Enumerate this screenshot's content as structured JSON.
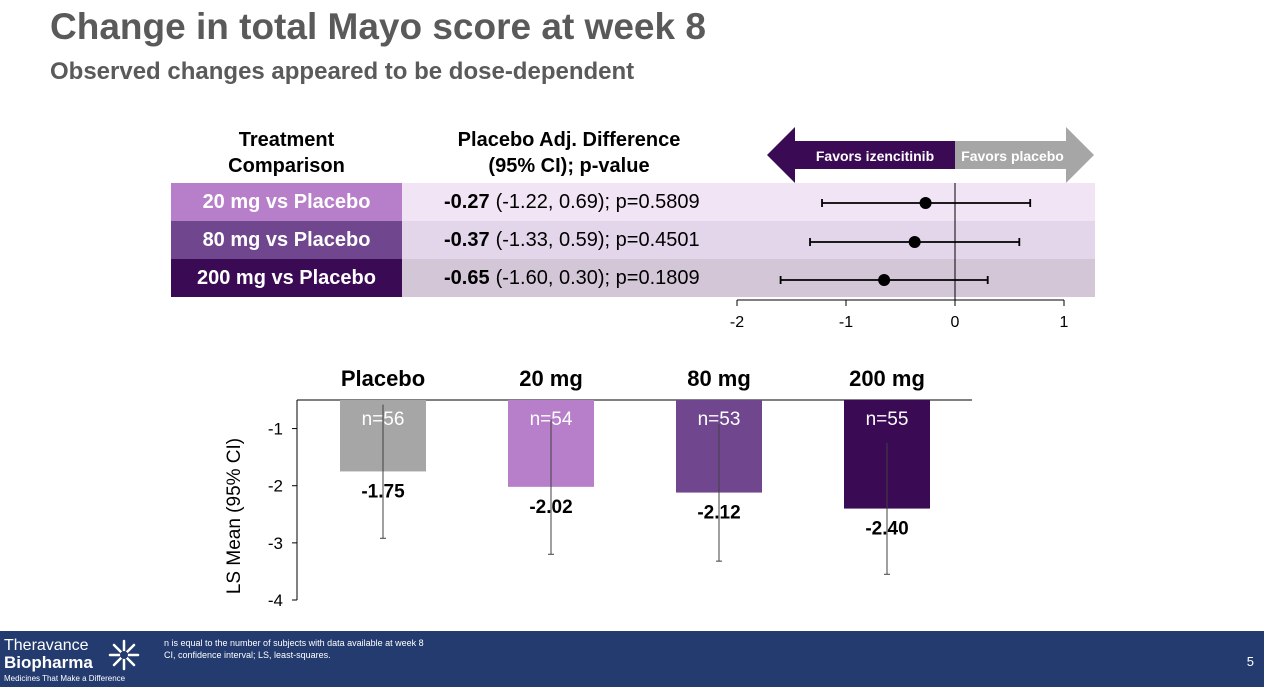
{
  "header": {
    "title": "Change in total Mayo score at week 8",
    "subtitle": "Observed changes appeared to be dose-dependent"
  },
  "forest": {
    "col_treatment_1": "Treatment",
    "col_treatment_2": "Comparison",
    "col_diff_1": "Placebo Adj. Difference",
    "col_diff_2": "(95% CI); p-value",
    "favors_left": "Favors izencitinib",
    "favors_right": "Favors placebo",
    "rows": [
      {
        "label": "20 mg vs Placebo",
        "estimate_text": "-0.27",
        "ci_text": "(-1.22, 0.69); p=0.5809",
        "estimate": -0.27,
        "lower": -1.22,
        "upper": 0.69,
        "label_color": "#b77fca",
        "band_color": "#f1e4f4"
      },
      {
        "label": "80 mg vs Placebo",
        "estimate_text": "-0.37",
        "ci_text": "(-1.33, 0.59); p=0.4501",
        "estimate": -0.37,
        "lower": -1.33,
        "upper": 0.59,
        "label_color": "#70478e",
        "band_color": "#e3d6ea"
      },
      {
        "label": "200 mg vs Placebo",
        "estimate_text": "-0.65",
        "ci_text": "(-1.60, 0.30); p=0.1809",
        "estimate": -0.65,
        "lower": -1.6,
        "upper": 0.3,
        "label_color": "#3b0a55",
        "band_color": "#d2c6d7"
      }
    ],
    "axis_ticks": [
      -2,
      -1,
      0,
      1
    ],
    "axis_tick_labels": [
      "-2",
      "-1",
      "0",
      "1"
    ],
    "xlim": [
      -2,
      1
    ]
  },
  "chart_data": {
    "type": "bar",
    "categories": [
      "Placebo",
      "20 mg",
      "80 mg",
      "200 mg"
    ],
    "n_labels": [
      "n=56",
      "n=54",
      "n=53",
      "n=55"
    ],
    "values": [
      -1.75,
      -2.02,
      -2.12,
      -2.4
    ],
    "value_labels": [
      "-1.75",
      "-2.02",
      "-2.12",
      "-2.40"
    ],
    "ci_lower": [
      -2.92,
      -3.2,
      -3.32,
      -3.55
    ],
    "ci_upper": [
      -0.58,
      -0.84,
      -0.92,
      -1.25
    ],
    "colors": [
      "#a6a6a6",
      "#b77fca",
      "#70478e",
      "#3b0a55"
    ],
    "ylabel": "LS Mean (95% CI)",
    "yticks": [
      -1,
      -2,
      -3,
      -4
    ],
    "ytick_labels": [
      "-1",
      "-2",
      "-3",
      "-4"
    ],
    "ylim": [
      -4,
      -0.5
    ],
    "grid": false
  },
  "footer": {
    "logo_line1": "Theravance",
    "logo_line2": "Biopharma",
    "tagline": "Medicines That Make a Difference",
    "footnote_1": "n is equal to the number of subjects with data available at week 8",
    "footnote_2": "CI, confidence interval; LS, least-squares.",
    "page_number": "5",
    "background": "#233b6e"
  }
}
